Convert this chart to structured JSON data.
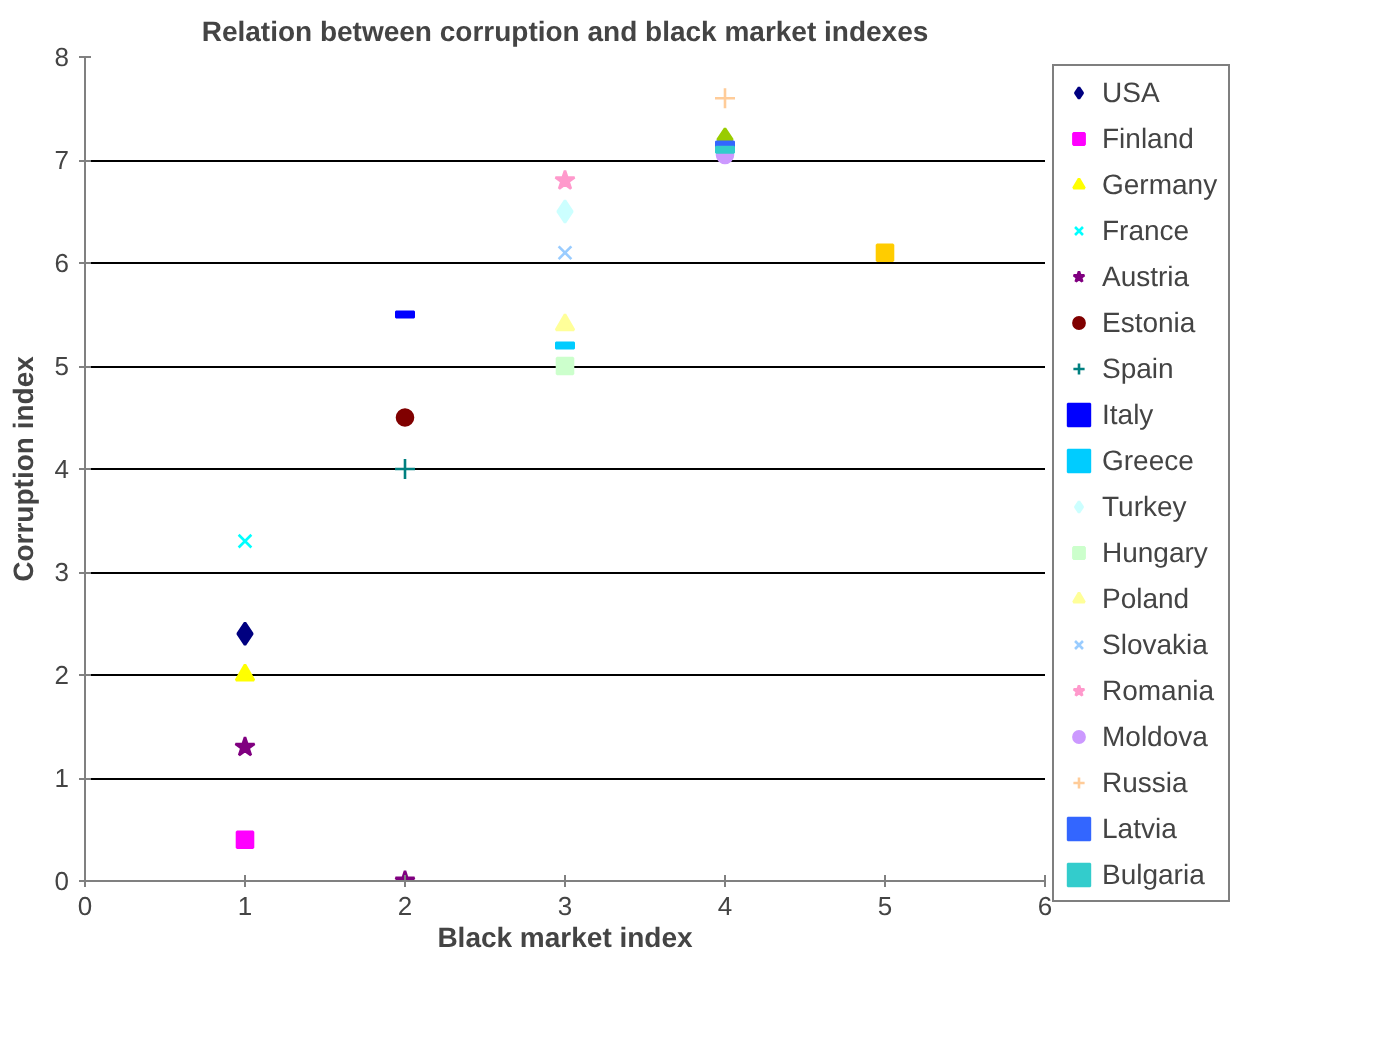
{
  "chart_data": {
    "type": "scatter",
    "title": "Relation between corruption and black market indexes",
    "xlabel": "Black market index",
    "ylabel": "Corruption index",
    "xlim": [
      0,
      6
    ],
    "xticks": [
      0,
      1,
      2,
      3,
      4,
      5,
      6
    ],
    "ylim": [
      0,
      8
    ],
    "yticks": [
      0,
      1,
      2,
      3,
      4,
      5,
      6,
      7,
      8
    ],
    "grid": "y",
    "legend": "right",
    "series": [
      {
        "name": "USA",
        "color": "#000080",
        "marker": "diamond",
        "x": [
          1
        ],
        "values": [
          2.4
        ]
      },
      {
        "name": "Finland",
        "color": "#ff00ff",
        "marker": "square",
        "x": [
          1
        ],
        "values": [
          0.4
        ]
      },
      {
        "name": "Germany",
        "color": "#ffff00",
        "marker": "triangle",
        "x": [
          1
        ],
        "values": [
          2.0
        ]
      },
      {
        "name": "France",
        "color": "#00ffff",
        "marker": "x",
        "x": [
          1
        ],
        "values": [
          3.3
        ]
      },
      {
        "name": "Austria",
        "color": "#800080",
        "marker": "star",
        "x": [
          1,
          2
        ],
        "values": [
          1.3,
          0
        ]
      },
      {
        "name": "Estonia",
        "color": "#800000",
        "marker": "circle",
        "x": [
          2
        ],
        "values": [
          4.5
        ]
      },
      {
        "name": "Spain",
        "color": "#008080",
        "marker": "cross",
        "x": [
          2
        ],
        "values": [
          4.0
        ]
      },
      {
        "name": "Italy",
        "color": "#0000ff",
        "x": [
          2
        ],
        "values": [
          5.5
        ]
      },
      {
        "name": "Greece",
        "color": "#00ccff",
        "x": [
          3
        ],
        "values": [
          5.2
        ]
      },
      {
        "name": "Turkey",
        "color": "#ccffff",
        "marker": "diamond",
        "x": [
          3
        ],
        "values": [
          6.5
        ]
      },
      {
        "name": "Hungary",
        "color": "#ccffcc",
        "marker": "square",
        "x": [
          3
        ],
        "values": [
          5.0
        ]
      },
      {
        "name": "Poland",
        "color": "#ffff99",
        "marker": "triangle",
        "x": [
          3
        ],
        "values": [
          5.4
        ]
      },
      {
        "name": "Slovakia",
        "color": "#99ccff",
        "marker": "x",
        "x": [
          3
        ],
        "values": [
          6.1
        ]
      },
      {
        "name": "Romania",
        "color": "#ff99cc",
        "marker": "star",
        "x": [
          3
        ],
        "values": [
          6.8
        ]
      },
      {
        "name": "Moldova",
        "color": "#cc99ff",
        "marker": "circle",
        "x": [
          4
        ],
        "values": [
          7.05
        ]
      },
      {
        "name": "Russia",
        "color": "#ffcc99",
        "marker": "cross",
        "x": [
          4
        ],
        "values": [
          7.6
        ]
      },
      {
        "name": "Latvia",
        "color": "#3366ff",
        "x": [
          4
        ],
        "values": [
          7.15
        ]
      },
      {
        "name": "Bulgaria",
        "color": "#33cccc",
        "x": [
          4
        ],
        "values": [
          7.1
        ]
      },
      {
        "color": "#99cc00",
        "marker": "diamond",
        "x": [
          4
        ],
        "values": [
          7.2
        ]
      },
      {
        "color": "#ffcc00",
        "marker": "square",
        "x": [
          5
        ],
        "values": [
          6.1
        ]
      }
    ]
  }
}
